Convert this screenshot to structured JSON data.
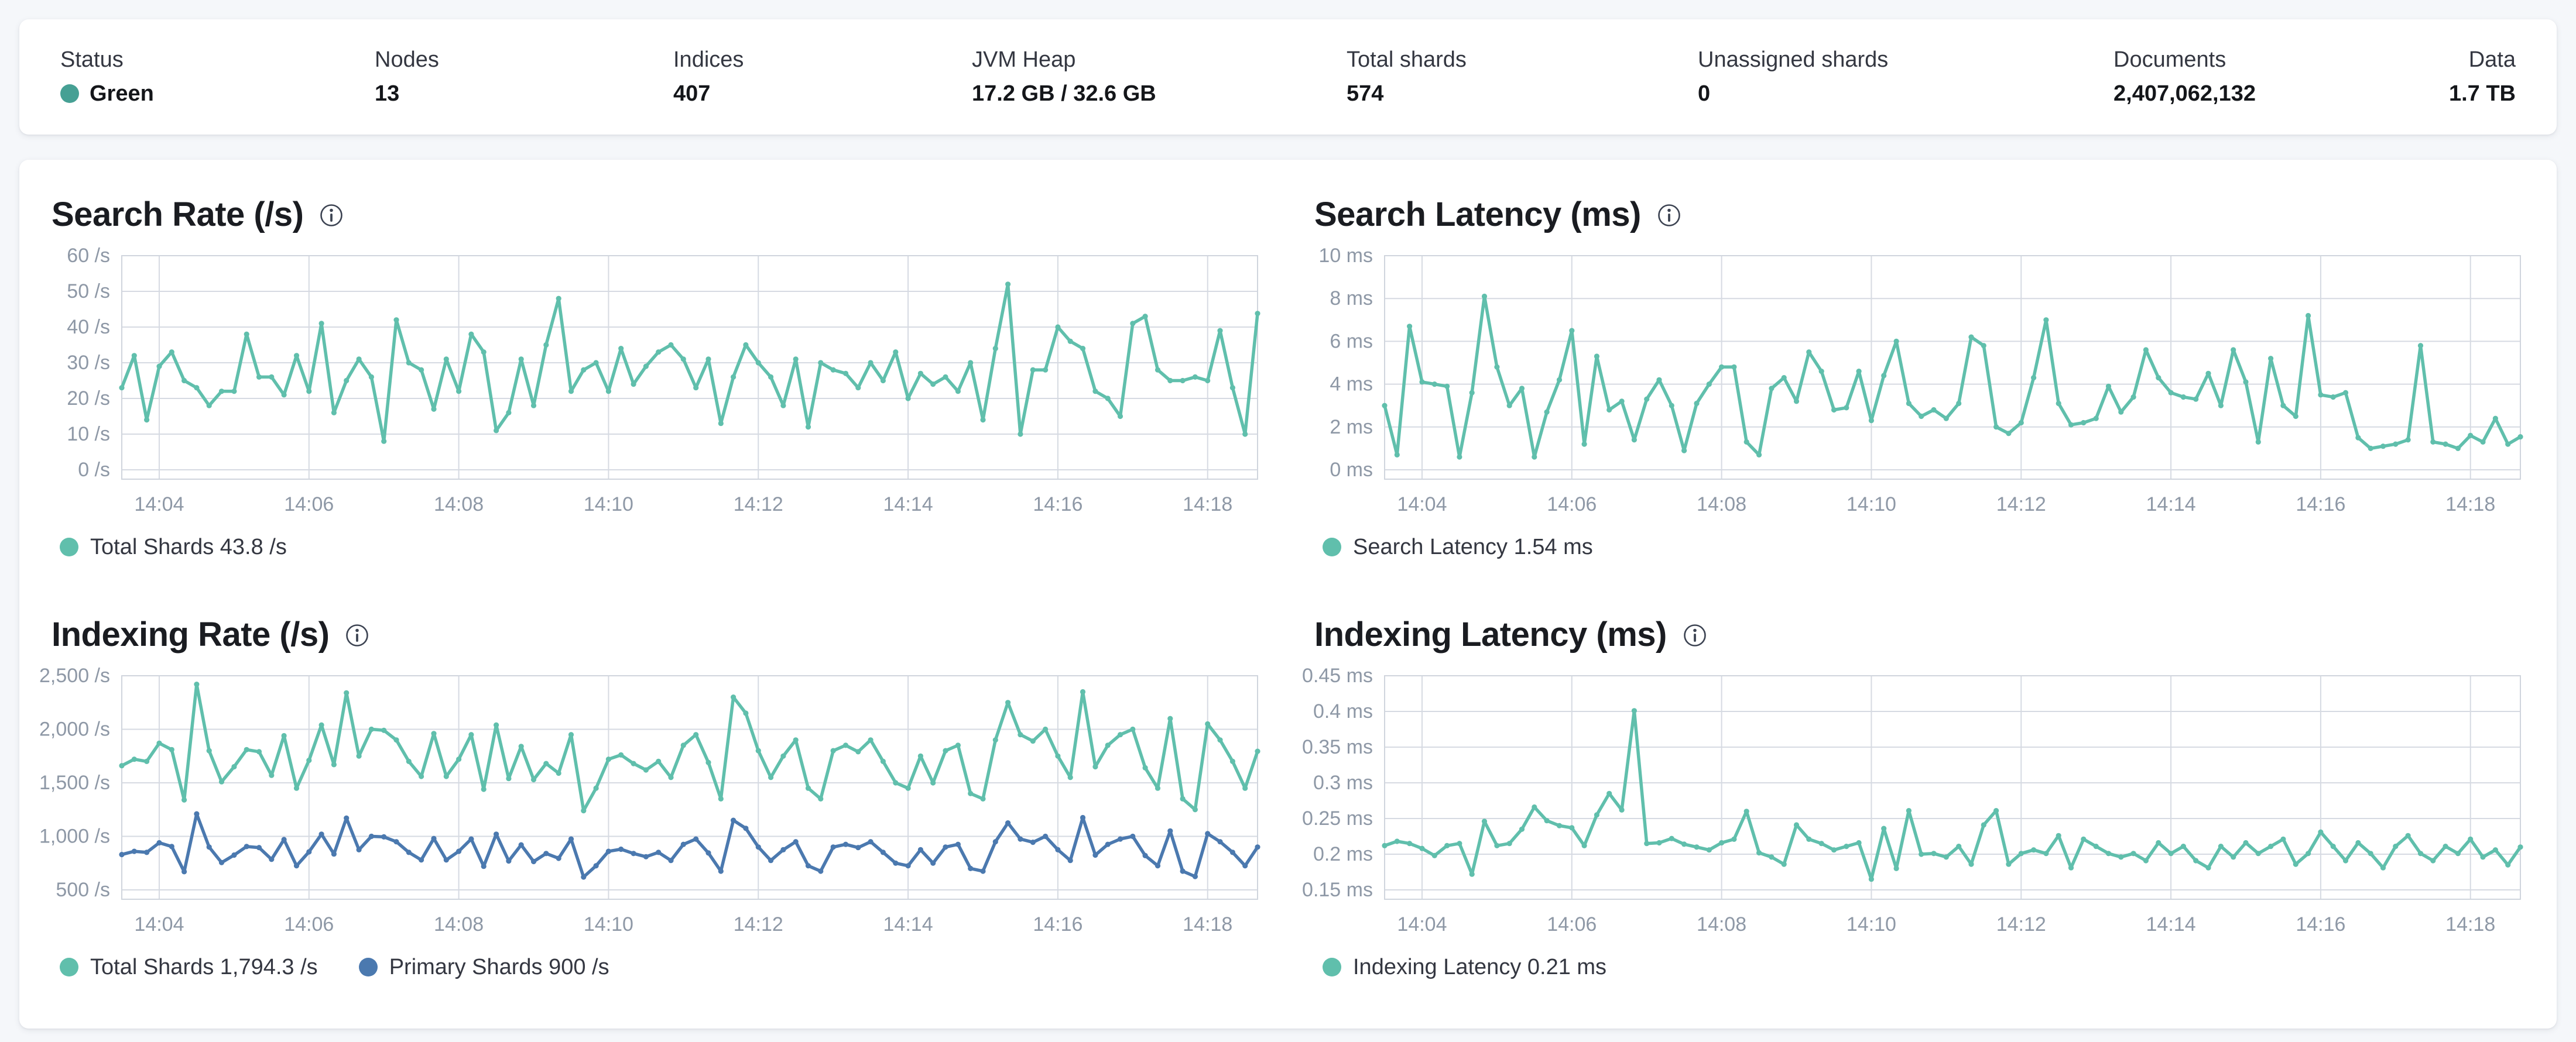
{
  "overview": {
    "stats": [
      {
        "label": "Status",
        "value": "Green",
        "type": "status"
      },
      {
        "label": "Nodes",
        "value": "13"
      },
      {
        "label": "Indices",
        "value": "407"
      },
      {
        "label": "JVM Heap",
        "value": "17.2 GB / 32.6 GB"
      },
      {
        "label": "Total shards",
        "value": "574"
      },
      {
        "label": "Unassigned shards",
        "value": "0"
      },
      {
        "label": "Documents",
        "value": "2,407,062,132"
      },
      {
        "label": "Data",
        "value": "1.7 TB"
      }
    ],
    "status_color": "#46a094"
  },
  "colors": {
    "page_background": "#f5f7fa",
    "card_background": "#ffffff",
    "teal_series": "#60bfac",
    "blue_series": "#4b79af",
    "gridline": "#d6dae2",
    "plot_border": "#d0d5dd",
    "axis_text": "#8e98a6",
    "title_text": "#1a1c21"
  },
  "chart_data": [
    {
      "type": "line",
      "title": "Search Rate (/s)",
      "info_icon": "info-circle",
      "grid": true,
      "legend_position": "bottom",
      "x_start": "14:03:30",
      "x_interval_seconds": 10,
      "x_ticks": [
        "14:04",
        "14:06",
        "14:08",
        "14:10",
        "14:12",
        "14:14",
        "14:16",
        "14:18"
      ],
      "ylim": [
        0,
        60
      ],
      "y_tick_values": [
        0,
        10,
        20,
        30,
        40,
        50,
        60
      ],
      "y_tick_labels": [
        "0 /s",
        "10 /s",
        "20 /s",
        "30 /s",
        "40 /s",
        "50 /s",
        "60 /s"
      ],
      "series": [
        {
          "name": "Total Shards",
          "legend": "Total Shards 43.8 /s",
          "current_value": "43.8 /s",
          "color": "#60bfac",
          "values": [
            23,
            32,
            14,
            29,
            33,
            25,
            23,
            18,
            22,
            22,
            38,
            26,
            26,
            21,
            32,
            22,
            41,
            16,
            25,
            31,
            26,
            8,
            42,
            30,
            28,
            17,
            31,
            22,
            38,
            33,
            11,
            16,
            31,
            18,
            35,
            48,
            22,
            28,
            30,
            22,
            34,
            24,
            29,
            33,
            35,
            31,
            23,
            31,
            13,
            26,
            35,
            30,
            26,
            18,
            31,
            12,
            30,
            28,
            27,
            23,
            30,
            25,
            33,
            20,
            27,
            24,
            26,
            22,
            30,
            14,
            34,
            52,
            10,
            28,
            28,
            40,
            36,
            34,
            22,
            20,
            15,
            41,
            43,
            28,
            25,
            25,
            26,
            25,
            39,
            23,
            10,
            43.8
          ]
        }
      ]
    },
    {
      "type": "line",
      "title": "Search Latency (ms)",
      "info_icon": "info-circle",
      "grid": true,
      "legend_position": "bottom",
      "x_start": "14:03:30",
      "x_interval_seconds": 10,
      "x_ticks": [
        "14:04",
        "14:06",
        "14:08",
        "14:10",
        "14:12",
        "14:14",
        "14:16",
        "14:18"
      ],
      "ylim": [
        0,
        10
      ],
      "y_tick_values": [
        0,
        2,
        4,
        6,
        8,
        10
      ],
      "y_tick_labels": [
        "0 ms",
        "2 ms",
        "4 ms",
        "6 ms",
        "8 ms",
        "10 ms"
      ],
      "series": [
        {
          "name": "Search Latency",
          "legend": "Search Latency 1.54 ms",
          "current_value": "1.54 ms",
          "color": "#60bfac",
          "values": [
            3.0,
            0.7,
            6.7,
            4.1,
            4.0,
            3.9,
            0.6,
            3.6,
            8.1,
            4.8,
            3.0,
            3.8,
            0.6,
            2.7,
            4.2,
            6.5,
            1.2,
            5.3,
            2.8,
            3.2,
            1.4,
            3.3,
            4.2,
            3.0,
            0.9,
            3.1,
            4.0,
            4.8,
            4.8,
            1.3,
            0.7,
            3.8,
            4.3,
            3.2,
            5.5,
            4.6,
            2.8,
            2.9,
            4.6,
            2.3,
            4.4,
            6.0,
            3.1,
            2.5,
            2.8,
            2.4,
            3.1,
            6.2,
            5.8,
            2.0,
            1.7,
            2.2,
            4.3,
            7.0,
            3.1,
            2.1,
            2.2,
            2.4,
            3.9,
            2.7,
            3.4,
            5.6,
            4.3,
            3.6,
            3.4,
            3.3,
            4.5,
            3.0,
            5.6,
            4.1,
            1.3,
            5.2,
            3.0,
            2.5,
            7.2,
            3.5,
            3.4,
            3.6,
            1.5,
            1.0,
            1.1,
            1.2,
            1.4,
            5.8,
            1.3,
            1.2,
            1.0,
            1.6,
            1.3,
            2.4,
            1.2,
            1.54
          ]
        }
      ]
    },
    {
      "type": "line",
      "title": "Indexing Rate (/s)",
      "info_icon": "info-circle",
      "grid": true,
      "legend_position": "bottom",
      "x_start": "14:03:30",
      "x_interval_seconds": 10,
      "x_ticks": [
        "14:04",
        "14:06",
        "14:08",
        "14:10",
        "14:12",
        "14:14",
        "14:16",
        "14:18"
      ],
      "ylim": [
        500,
        2500
      ],
      "y_tick_values": [
        500,
        1000,
        1500,
        2000,
        2500
      ],
      "y_tick_labels": [
        "500 /s",
        "1,000 /s",
        "1,500 /s",
        "2,000 /s",
        "2,500 /s"
      ],
      "series": [
        {
          "name": "Total Shards",
          "legend": "Total Shards 1,794.3 /s",
          "current_value": "1,794.3 /s",
          "color": "#60bfac",
          "values": [
            1660,
            1720,
            1700,
            1870,
            1810,
            1340,
            2420,
            1800,
            1510,
            1650,
            1810,
            1790,
            1570,
            1940,
            1450,
            1710,
            2040,
            1670,
            2340,
            1750,
            2000,
            1990,
            1900,
            1700,
            1560,
            1960,
            1560,
            1720,
            1950,
            1440,
            2040,
            1540,
            1840,
            1530,
            1680,
            1590,
            1950,
            1240,
            1450,
            1720,
            1760,
            1680,
            1620,
            1700,
            1550,
            1850,
            1950,
            1690,
            1350,
            2300,
            2150,
            1800,
            1550,
            1750,
            1900,
            1450,
            1350,
            1800,
            1850,
            1790,
            1900,
            1700,
            1500,
            1450,
            1750,
            1500,
            1800,
            1850,
            1400,
            1350,
            1900,
            2250,
            1950,
            1890,
            2000,
            1750,
            1550,
            2350,
            1650,
            1850,
            1950,
            2000,
            1640,
            1450,
            2100,
            1350,
            1250,
            2050,
            1900,
            1700,
            1450,
            1794.3
          ]
        },
        {
          "name": "Primary Shards",
          "legend": "Primary Shards 900 /s",
          "current_value": "900 /s",
          "color": "#4b79af",
          "values": [
            830,
            860,
            850,
            940,
            905,
            670,
            1210,
            900,
            755,
            825,
            905,
            895,
            785,
            970,
            725,
            855,
            1020,
            835,
            1170,
            875,
            1000,
            995,
            950,
            850,
            780,
            980,
            780,
            860,
            975,
            720,
            1020,
            770,
            920,
            765,
            840,
            795,
            975,
            620,
            725,
            860,
            880,
            840,
            810,
            850,
            775,
            925,
            975,
            845,
            675,
            1150,
            1075,
            900,
            775,
            875,
            950,
            725,
            675,
            900,
            925,
            895,
            950,
            850,
            750,
            725,
            875,
            750,
            900,
            925,
            700,
            675,
            950,
            1125,
            975,
            945,
            1000,
            875,
            775,
            1175,
            825,
            925,
            975,
            1000,
            820,
            725,
            1050,
            675,
            625,
            1025,
            950,
            850,
            725,
            900
          ]
        }
      ]
    },
    {
      "type": "line",
      "title": "Indexing Latency (ms)",
      "info_icon": "info-circle",
      "grid": true,
      "legend_position": "bottom",
      "x_start": "14:03:30",
      "x_interval_seconds": 10,
      "x_ticks": [
        "14:04",
        "14:06",
        "14:08",
        "14:10",
        "14:12",
        "14:14",
        "14:16",
        "14:18"
      ],
      "ylim": [
        0.15,
        0.45
      ],
      "y_tick_values": [
        0.15,
        0.2,
        0.25,
        0.3,
        0.35,
        0.4,
        0.45
      ],
      "y_tick_labels": [
        "0.15 ms",
        "0.2 ms",
        "0.25 ms",
        "0.3 ms",
        "0.35 ms",
        "0.4 ms",
        "0.45 ms"
      ],
      "series": [
        {
          "name": "Indexing Latency",
          "legend": "Indexing Latency 0.21 ms",
          "current_value": "0.21 ms",
          "color": "#60bfac",
          "values": [
            0.212,
            0.218,
            0.215,
            0.208,
            0.198,
            0.212,
            0.215,
            0.172,
            0.246,
            0.212,
            0.215,
            0.235,
            0.266,
            0.247,
            0.24,
            0.237,
            0.212,
            0.255,
            0.285,
            0.262,
            0.401,
            0.215,
            0.216,
            0.222,
            0.214,
            0.21,
            0.206,
            0.216,
            0.221,
            0.26,
            0.202,
            0.196,
            0.186,
            0.241,
            0.221,
            0.215,
            0.206,
            0.211,
            0.216,
            0.165,
            0.236,
            0.18,
            0.261,
            0.2,
            0.201,
            0.196,
            0.211,
            0.186,
            0.241,
            0.261,
            0.186,
            0.201,
            0.206,
            0.201,
            0.226,
            0.181,
            0.221,
            0.211,
            0.201,
            0.196,
            0.201,
            0.191,
            0.216,
            0.201,
            0.211,
            0.191,
            0.181,
            0.211,
            0.196,
            0.216,
            0.201,
            0.211,
            0.221,
            0.186,
            0.201,
            0.231,
            0.211,
            0.191,
            0.216,
            0.201,
            0.181,
            0.211,
            0.226,
            0.201,
            0.191,
            0.211,
            0.201,
            0.221,
            0.196,
            0.206,
            0.185,
            0.21
          ]
        }
      ]
    }
  ]
}
